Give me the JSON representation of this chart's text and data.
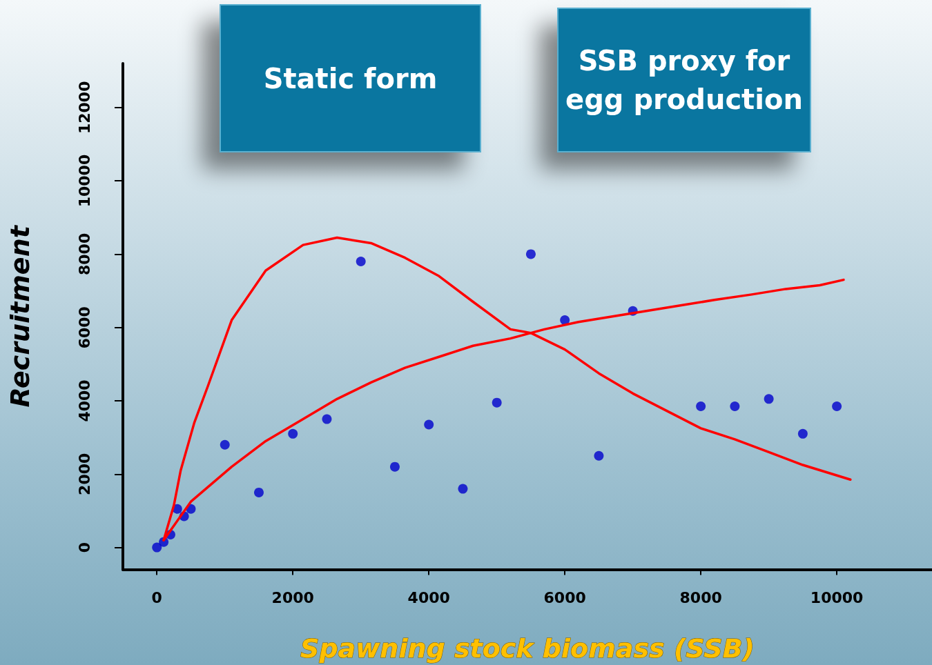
{
  "chart_data": {
    "type": "scatter",
    "xlabel": "Spawning stock biomass (SSB)",
    "ylabel": "Recruitment",
    "annotations": [
      "Static form",
      "SSB proxy for egg production"
    ],
    "xlim": [
      -500,
      11400
    ],
    "ylim": [
      -600,
      13200
    ],
    "xticks": [
      0,
      2000,
      4000,
      6000,
      8000,
      10000
    ],
    "yticks": [
      0,
      2000,
      4000,
      6000,
      8000,
      10000,
      12000
    ],
    "grid": false,
    "series": [
      {
        "type": "scatter",
        "color": "#0000cc",
        "marker": "circle",
        "x": [
          0,
          100,
          200,
          300,
          400,
          500,
          1000,
          1500,
          2000,
          2500,
          3000,
          3500,
          4000,
          4500,
          5000,
          5500,
          6000,
          6500,
          7000,
          8000,
          8500,
          9000,
          9500,
          10000
        ],
        "values": [
          0,
          150,
          350,
          1050,
          850,
          1050,
          2800,
          1500,
          3100,
          3500,
          7800,
          2200,
          3350,
          1600,
          3950,
          8000,
          6200,
          2500,
          6450,
          3850,
          3850,
          4050,
          3100,
          3850
        ]
      },
      {
        "type": "line",
        "color": "#ff0000",
        "marker": "none",
        "x": [
          100,
          250,
          350,
          550,
          750,
          1100,
          1600,
          2150,
          2650,
          3150,
          3650,
          4150,
          4650,
          5200,
          5500,
          6000,
          6500,
          7000,
          8000,
          8500,
          9000,
          9500,
          10200
        ],
        "values": [
          200,
          1150,
          2100,
          3400,
          4400,
          6200,
          7550,
          8250,
          8450,
          8300,
          7900,
          7400,
          6700,
          5950,
          5850,
          5400,
          4750,
          4200,
          3250,
          2950,
          2600,
          2250,
          1850
        ]
      },
      {
        "type": "line",
        "color": "#ff0000",
        "marker": "none",
        "x": [
          100,
          500,
          1100,
          1600,
          2150,
          2650,
          3150,
          3650,
          4150,
          4650,
          5200,
          5700,
          6200,
          6700,
          7200,
          7700,
          8200,
          8750,
          9250,
          9750,
          10100
        ],
        "values": [
          200,
          1250,
          2200,
          2900,
          3500,
          4050,
          4500,
          4900,
          5200,
          5500,
          5700,
          5950,
          6150,
          6300,
          6450,
          6600,
          6750,
          6900,
          7050,
          7150,
          7300
        ]
      }
    ]
  }
}
